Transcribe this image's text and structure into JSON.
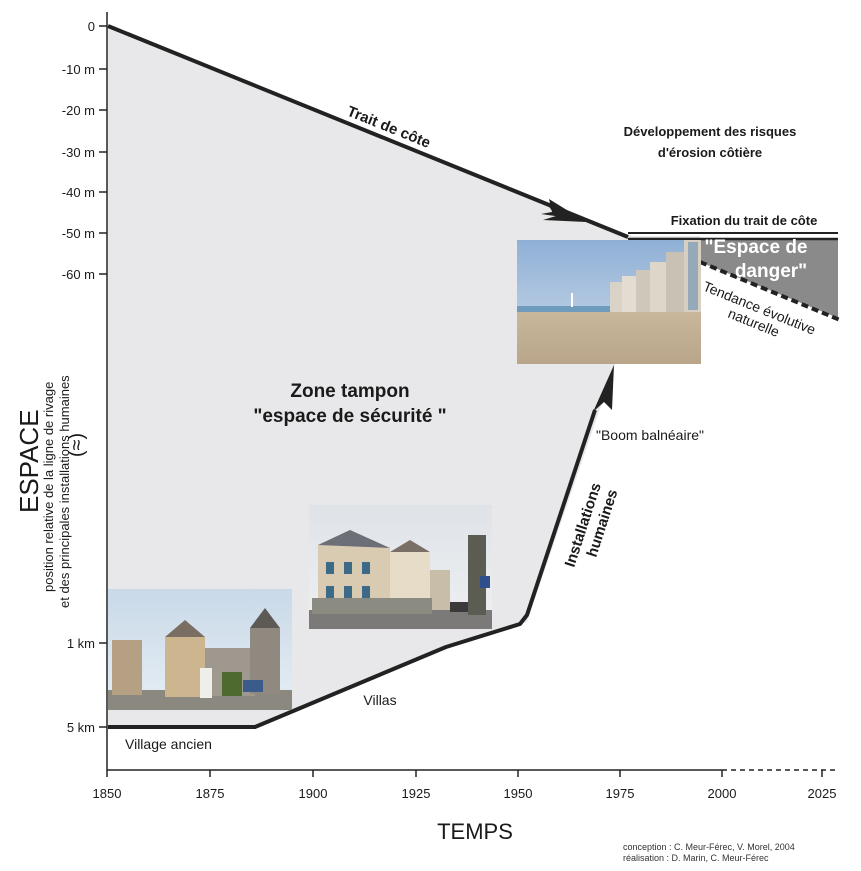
{
  "y_ticks": [
    "0",
    "-10 m",
    "-20 m",
    "-30 m",
    "-40 m",
    "-50 m",
    "-60 m",
    "1 km",
    "5 km"
  ],
  "x_ticks": [
    "1850",
    "1875",
    "1900",
    "1925",
    "1950",
    "1975",
    "2000",
    "2025"
  ],
  "axis": {
    "y_title": "ESPACE",
    "y_subtitle_1": "position relative de la  ligne de rivage",
    "y_subtitle_2": "et des principales installations humaines",
    "y_break": "(≈)",
    "x_title": "TEMPS"
  },
  "labels": {
    "trait_de_cote": "Trait de côte",
    "risques_1": "Développement des risques",
    "risques_2": "d'érosion côtière",
    "fixation": "Fixation du trait de côte",
    "danger_1": "\"Espace de",
    "danger_2": "danger\"",
    "tendance_1": "Tendance  évolutive",
    "tendance_2": "naturelle",
    "zone_1": "Zone tampon",
    "zone_2": "\"espace de sécurité \"",
    "boom": "\"Boom balnéaire\"",
    "installations_1": "Installations",
    "installations_2": "humaines",
    "villas": "Villas",
    "village": "Village ancien"
  },
  "credits": {
    "line1": "conception : C. Meur-Férec, V. Morel, 2004",
    "line2": "réalisation : D. Marin, C. Meur-Férec"
  },
  "colors": {
    "zone_fill": "#e8e8ea",
    "danger_fill": "#8a8a8a",
    "line": "#222222"
  }
}
